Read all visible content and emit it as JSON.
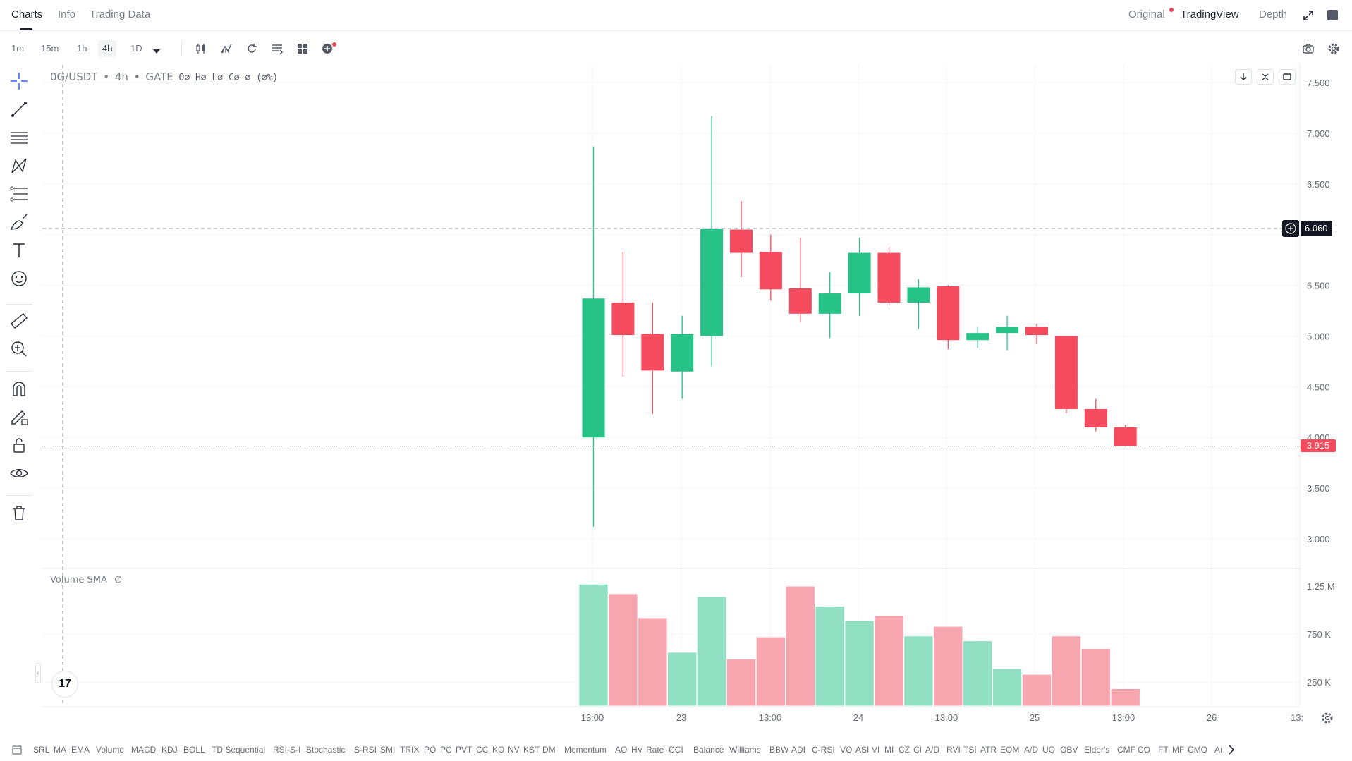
{
  "header": {
    "tabs": [
      {
        "label": "Charts",
        "active": true
      },
      {
        "label": "Info",
        "active": false
      },
      {
        "label": "Trading Data",
        "active": false
      }
    ],
    "right_tabs": [
      {
        "label": "Original",
        "active": false
      },
      {
        "label": "TradingView",
        "active": true
      },
      {
        "label": "Depth",
        "active": false
      }
    ]
  },
  "toolbar": {
    "timeframes": [
      {
        "label": "1m",
        "active": false
      },
      {
        "label": "15m",
        "active": false
      },
      {
        "label": "1h",
        "active": false
      },
      {
        "label": "4h",
        "active": true
      },
      {
        "label": "1D",
        "active": false
      }
    ]
  },
  "legend": {
    "symbol": "0G/USDT",
    "interval": "4h",
    "exchange": "GATE",
    "sep": "•",
    "ohlc": "O∅ H∅ L∅ C∅ ∅ (∅%)"
  },
  "volume_legend": {
    "label": "Volume SMA",
    "value": "∅"
  },
  "price_tags": {
    "crosshair": "6.060",
    "last": "3.915"
  },
  "colors": {
    "up": "#26c287",
    "down": "#f44b5f",
    "up_volume": "#92e0c3",
    "down_volume": "#f7a5af",
    "crosshair_tag_bg": "#131722",
    "last_tag_bg": "#f44b5f"
  },
  "chart_data": {
    "type": "candlestick",
    "price_axis": {
      "ticks": [
        "7.500",
        "7.000",
        "6.500",
        "5.500",
        "5.000",
        "4.500",
        "4.000",
        "3.500",
        "3.000"
      ],
      "range": [
        2.7,
        7.62
      ]
    },
    "volume_axis": {
      "ticks": [
        "1.25 M",
        "750 K",
        "250 K"
      ],
      "range": [
        0,
        1.38
      ]
    },
    "time_axis": {
      "ticks": [
        "13:00",
        "23",
        "13:00",
        "24",
        "13:00",
        "25",
        "13:00",
        "26",
        "13:"
      ]
    },
    "candles": [
      {
        "o": 4.0,
        "h": 6.87,
        "l": 3.12,
        "c": 5.37,
        "v": 1.27
      },
      {
        "o": 5.33,
        "h": 5.83,
        "l": 4.6,
        "c": 5.01,
        "v": 1.17
      },
      {
        "o": 5.02,
        "h": 5.33,
        "l": 4.23,
        "c": 4.66,
        "v": 0.92
      },
      {
        "o": 4.65,
        "h": 5.2,
        "l": 4.38,
        "c": 5.02,
        "v": 0.56
      },
      {
        "o": 5.0,
        "h": 7.17,
        "l": 4.7,
        "c": 6.06,
        "v": 1.14
      },
      {
        "o": 6.05,
        "h": 6.33,
        "l": 5.58,
        "c": 5.82,
        "v": 0.49
      },
      {
        "o": 5.83,
        "h": 6.0,
        "l": 5.35,
        "c": 5.46,
        "v": 0.72
      },
      {
        "o": 5.47,
        "h": 5.97,
        "l": 5.14,
        "c": 5.22,
        "v": 1.25
      },
      {
        "o": 5.22,
        "h": 5.63,
        "l": 4.98,
        "c": 5.42,
        "v": 1.04
      },
      {
        "o": 5.42,
        "h": 5.97,
        "l": 5.2,
        "c": 5.82,
        "v": 0.89
      },
      {
        "o": 5.82,
        "h": 5.87,
        "l": 5.3,
        "c": 5.33,
        "v": 0.94
      },
      {
        "o": 5.33,
        "h": 5.56,
        "l": 5.07,
        "c": 5.48,
        "v": 0.73
      },
      {
        "o": 5.49,
        "h": 5.5,
        "l": 4.87,
        "c": 4.96,
        "v": 0.83
      },
      {
        "o": 4.96,
        "h": 5.09,
        "l": 4.88,
        "c": 5.03,
        "v": 0.68
      },
      {
        "o": 5.03,
        "h": 5.2,
        "l": 4.86,
        "c": 5.09,
        "v": 0.39
      },
      {
        "o": 5.09,
        "h": 5.12,
        "l": 4.92,
        "c": 5.01,
        "v": 0.33
      },
      {
        "o": 5.0,
        "h": 5.0,
        "l": 4.24,
        "c": 4.28,
        "v": 0.73
      },
      {
        "o": 4.28,
        "h": 4.38,
        "l": 4.06,
        "c": 4.1,
        "v": 0.6
      },
      {
        "o": 4.1,
        "h": 4.12,
        "l": 3.91,
        "c": 3.915,
        "v": 0.18
      }
    ]
  },
  "indicators": [
    "SRL",
    "MA",
    "EMA",
    "Volume",
    "MACD",
    "KDJ",
    "BOLL",
    "TD Sequential",
    "RSI-S-I",
    "Stochastic",
    "S-RSI",
    "SMI",
    "TRIX",
    "PO",
    "PC",
    "PVT",
    "CC",
    "KO",
    "NV",
    "KST",
    "DM",
    "Momentum",
    "AO",
    "HV",
    "Rate",
    "CCI",
    "Balance",
    "Williams",
    "BBW",
    "ADI",
    "C-RSI",
    "VO",
    "ASI",
    "VI",
    "MI",
    "CZ",
    "CI",
    "A/D",
    "RVI",
    "TSI",
    "ATR",
    "EOM",
    "A/D",
    "UO",
    "OBV",
    "Elder's",
    "CMF",
    "CO",
    "FT",
    "MF",
    "CMO",
    "Aı"
  ],
  "tv_logo": "17"
}
